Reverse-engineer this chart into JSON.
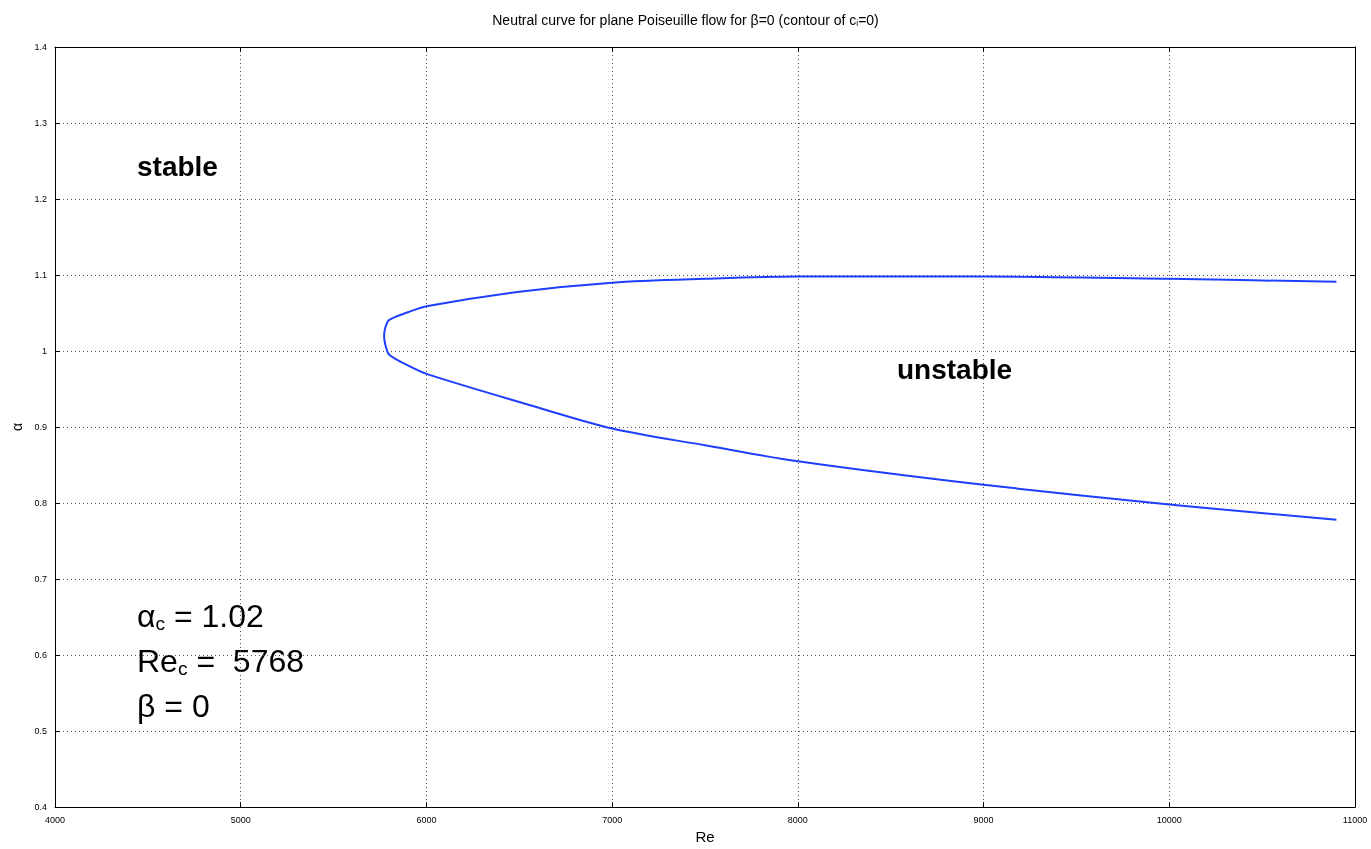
{
  "chart_data": {
    "type": "line",
    "title": "Neutral curve for plane Poiseuille flow for β=0 (contour of c$_{i}$=0)",
    "xlabel": "Re",
    "ylabel": "α",
    "x": [
      10900,
      10000,
      9000,
      8000,
      7500,
      7000,
      6500,
      6000,
      5900,
      5800,
      5780,
      5772,
      5780,
      5800,
      5900,
      6000,
      6500,
      7000,
      7500,
      8000,
      9000,
      10000,
      10900
    ],
    "series": [
      {
        "color": "#1f3fff",
        "values": [
          1.091,
          1.095,
          1.098,
          1.098,
          1.095,
          1.09,
          1.078,
          1.059,
          1.051,
          1.041,
          1.032,
          1.02,
          1.007,
          0.995,
          0.981,
          0.97,
          0.933,
          0.898,
          0.876,
          0.855,
          0.824,
          0.798,
          0.778
        ]
      }
    ],
    "xlim": [
      4000,
      11000
    ],
    "xticks": [
      4000,
      5000,
      6000,
      7000,
      8000,
      9000,
      10000,
      11000
    ],
    "ylim": [
      0.4,
      1.4
    ],
    "yticks": [
      0.4,
      0.5,
      0.6,
      0.7,
      0.8,
      0.9,
      1,
      1.1,
      1.2,
      1.3,
      1.4
    ],
    "grid": true,
    "marker": "none",
    "line_style": "solid",
    "annotations": [
      "stable",
      "unstable",
      "α$_{c}$ = 1.02",
      "Re$_{c}$ =  5768",
      "β = 0"
    ]
  }
}
